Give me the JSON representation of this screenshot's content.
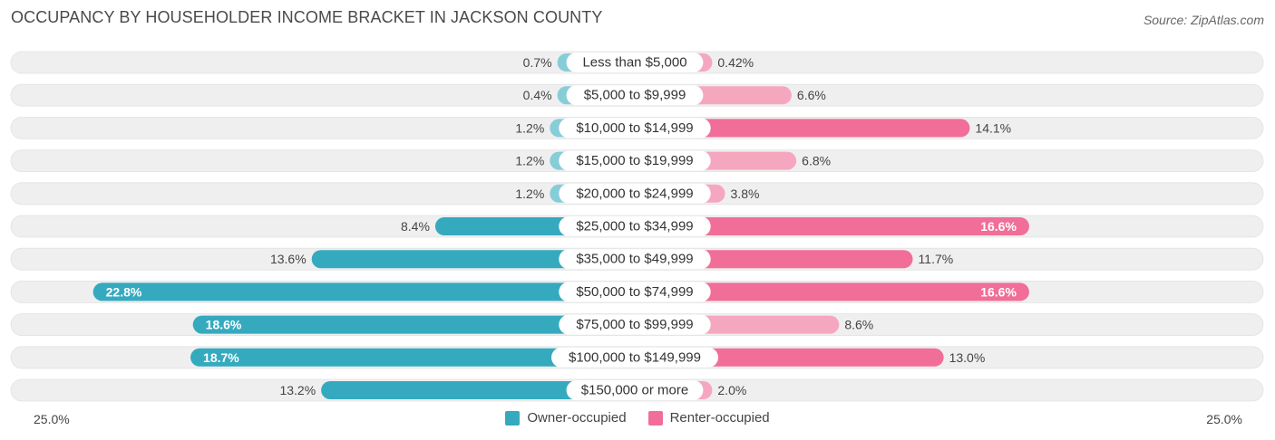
{
  "title": "OCCUPANCY BY HOUSEHOLDER INCOME BRACKET IN JACKSON COUNTY",
  "source": "Source: ZipAtlas.com",
  "colors": {
    "owner_strong": "#35aabf",
    "owner_light": "#86cdd8",
    "renter_strong": "#f06e98",
    "renter_light": "#f6a7c0",
    "track": "#efefef"
  },
  "chart_data": {
    "type": "bar",
    "orientation": "diverging-horizontal",
    "title": "OCCUPANCY BY HOUSEHOLDER INCOME BRACKET IN JACKSON COUNTY",
    "categories": [
      "Less than $5,000",
      "$5,000 to $9,999",
      "$10,000 to $14,999",
      "$15,000 to $19,999",
      "$20,000 to $24,999",
      "$25,000 to $34,999",
      "$35,000 to $49,999",
      "$50,000 to $74,999",
      "$75,000 to $99,999",
      "$100,000 to $149,999",
      "$150,000 or more"
    ],
    "series": [
      {
        "name": "Owner-occupied",
        "values": [
          0.7,
          0.4,
          1.2,
          1.2,
          1.2,
          8.4,
          13.6,
          22.8,
          18.6,
          18.7,
          13.2
        ],
        "labels": [
          "0.7%",
          "0.4%",
          "1.2%",
          "1.2%",
          "1.2%",
          "8.4%",
          "13.6%",
          "22.8%",
          "18.6%",
          "18.7%",
          "13.2%"
        ]
      },
      {
        "name": "Renter-occupied",
        "values": [
          0.42,
          6.6,
          14.1,
          6.8,
          3.8,
          16.6,
          11.7,
          16.6,
          8.6,
          13.0,
          2.0
        ],
        "labels": [
          "0.42%",
          "6.6%",
          "14.1%",
          "6.8%",
          "3.8%",
          "16.6%",
          "11.7%",
          "16.6%",
          "8.6%",
          "13.0%",
          "2.0%"
        ]
      }
    ],
    "xlim": [
      -25,
      25
    ],
    "axis_min_label": "25.0%",
    "axis_max_label": "25.0%",
    "legend": [
      "Owner-occupied",
      "Renter-occupied"
    ]
  }
}
